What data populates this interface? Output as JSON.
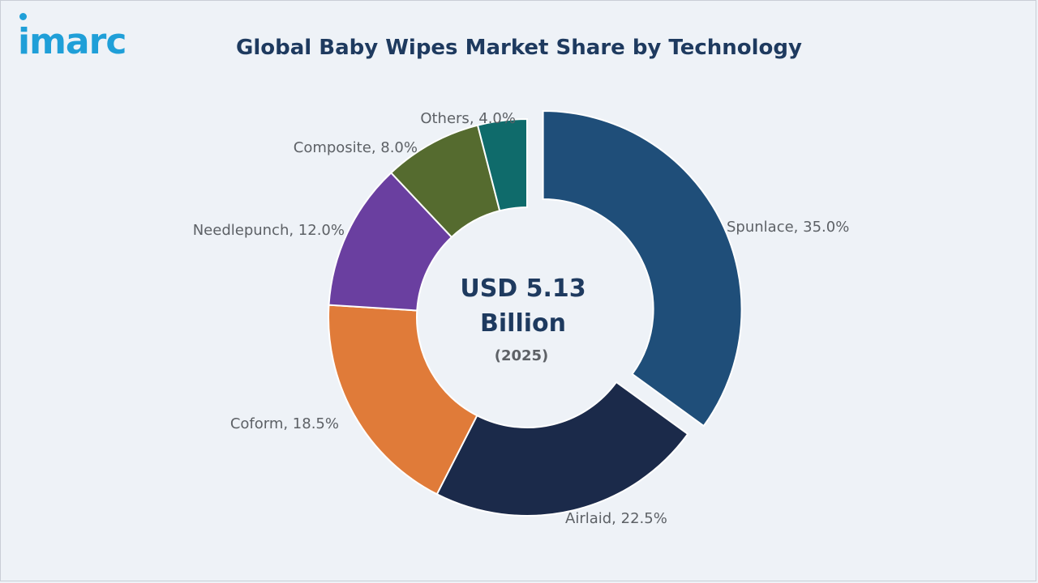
{
  "logo": {
    "text": "imarc"
  },
  "chart_data": {
    "type": "pie",
    "title": "Global Baby Wipes Market Share by Technology",
    "center": {
      "value": "USD 5.13",
      "unit": "Billion",
      "year": "(2025)"
    },
    "slices": [
      {
        "label": "Spunlace, 35.0%",
        "name": "Spunlace",
        "value": 35.0,
        "color": "#1f4e79",
        "exploded": true
      },
      {
        "label": "Airlaid, 22.5%",
        "name": "Airlaid",
        "value": 22.5,
        "color": "#1b2a4a"
      },
      {
        "label": "Coform, 18.5%",
        "name": "Coform",
        "value": 18.5,
        "color": "#e07b39"
      },
      {
        "label": "Needlepunch, 12.0%",
        "name": "Needlepunch",
        "value": 12.0,
        "color": "#6a3fa0"
      },
      {
        "label": "Composite, 8.0%",
        "name": "Composite",
        "value": 8.0,
        "color": "#556b2f"
      },
      {
        "label": "Others, 4.0%",
        "name": "Others",
        "value": 4.0,
        "color": "#0f6b6b"
      }
    ]
  }
}
